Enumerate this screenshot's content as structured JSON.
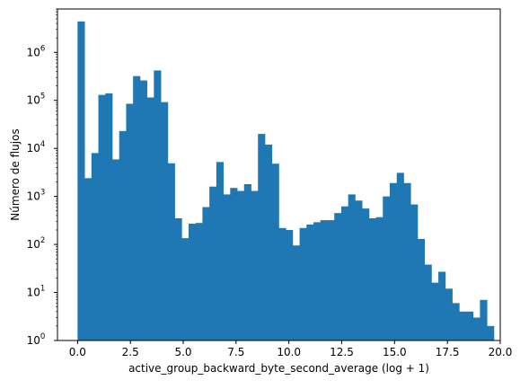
{
  "chart_data": {
    "type": "bar",
    "title": "",
    "xlabel": "active_group_backward_byte_second_average (log + 1)",
    "ylabel": "Número de flujos",
    "xlim": [
      -0.95,
      20.0
    ],
    "ylim": [
      1,
      8000000
    ],
    "yscale": "log",
    "bar_color": "#1f77b4",
    "grid": false,
    "bin_start": 0.0,
    "bin_width": 0.3283,
    "values": [
      4400000,
      2400,
      8000,
      130000,
      140000,
      5900,
      23000,
      85000,
      320000,
      260000,
      115000,
      420000,
      92000,
      4900,
      350,
      135,
      270,
      280,
      600,
      1600,
      5200,
      1100,
      1500,
      1300,
      1800,
      1300,
      20000,
      12000,
      4800,
      220,
      200,
      95,
      220,
      260,
      290,
      320,
      320,
      450,
      620,
      1100,
      820,
      560,
      350,
      370,
      1000,
      1900,
      3100,
      1900,
      680,
      130,
      38,
      16,
      27,
      12,
      6,
      4,
      4,
      3,
      7,
      2
    ],
    "x_ticks": [
      {
        "value": 0.0,
        "label": "0.0"
      },
      {
        "value": 2.5,
        "label": "2.5"
      },
      {
        "value": 5.0,
        "label": "5.0"
      },
      {
        "value": 7.5,
        "label": "7.5"
      },
      {
        "value": 10.0,
        "label": "10.0"
      },
      {
        "value": 12.5,
        "label": "12.5"
      },
      {
        "value": 15.0,
        "label": "15.0"
      },
      {
        "value": 17.5,
        "label": "17.5"
      },
      {
        "value": 20.0,
        "label": "20.0"
      }
    ],
    "y_ticks": [
      {
        "value": 1,
        "base": "10",
        "exp": "0"
      },
      {
        "value": 10,
        "base": "10",
        "exp": "1"
      },
      {
        "value": 100,
        "base": "10",
        "exp": "2"
      },
      {
        "value": 1000,
        "base": "10",
        "exp": "3"
      },
      {
        "value": 10000,
        "base": "10",
        "exp": "4"
      },
      {
        "value": 100000,
        "base": "10",
        "exp": "5"
      },
      {
        "value": 1000000,
        "base": "10",
        "exp": "6"
      }
    ]
  }
}
